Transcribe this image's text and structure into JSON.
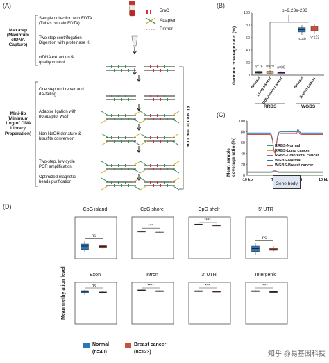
{
  "panel_a": {
    "label": "(A)",
    "legend": [
      {
        "label": "5mC",
        "icon": "5mc-marker-icon",
        "color": "#d4303b"
      },
      {
        "label": "Adapter",
        "icon": "adapter-icon",
        "color": "#2a8a4a"
      },
      {
        "label": "Primer",
        "icon": "primer-icon",
        "color": "#d4303b"
      }
    ],
    "maxcap_label": "Max-cap\n(Maximum\nctDNA\nCapture)",
    "minilib_label": "Mini-lib\n(Minimum\n1 ng of DNA\nLibrary\nPreparation)",
    "one_tube_label": "All step in one tube",
    "steps": [
      "Sample collection with EDTA\n(Tubes contain EDTA)",
      "Two step centrifugation\nDigestion with proteinase K",
      "ctDNA extraction &\nquality control",
      "One step end repair and\ndA-tailing",
      "Adaptor ligation with\nno adaptor wash",
      "Non-NaOH denature &\nbisulfite conversion",
      "Two-step, low cycle\nPCR amplification",
      "Optimized magnetic\nbeads purification"
    ]
  },
  "panel_b": {
    "label": "(B)",
    "ylabel": "Genome coverage ratio (%)",
    "pvalue": "p=9.23e-236",
    "group_rrbs": "RRBS",
    "group_wgbs": "WGBS",
    "chart_data": {
      "type": "box",
      "ylim": [
        0,
        100
      ],
      "yticks": [
        0,
        20,
        40,
        60,
        80,
        100
      ],
      "categories": [
        "Normal",
        "Lung cancer",
        "Colorectal cancer",
        "Normal",
        "Breast cancer"
      ],
      "groups": [
        "RRBS",
        "RRBS",
        "RRBS",
        "WGBS",
        "WGBS"
      ],
      "n_labels": [
        "n=75",
        "n=29",
        "n=30",
        "n=40",
        "n=123"
      ],
      "colors": [
        "#3a9a5a",
        "#e59a3a",
        "#8f5fb0",
        "#2a78b8",
        "#c8503c"
      ],
      "boxes": [
        {
          "q1": 3,
          "median": 4,
          "q3": 6,
          "min": 2,
          "max": 7
        },
        {
          "q1": 3,
          "median": 5,
          "q3": 6,
          "min": 2,
          "max": 8
        },
        {
          "q1": 2,
          "median": 4,
          "q3": 5,
          "min": 1,
          "max": 6
        },
        {
          "q1": 69,
          "median": 73,
          "q3": 76,
          "min": 64,
          "max": 80
        },
        {
          "q1": 71,
          "median": 74,
          "q3": 78,
          "min": 66,
          "max": 82
        }
      ]
    }
  },
  "panel_c": {
    "label": "(C)",
    "ylabel": "Mean sample\ncoverage ratio (%)",
    "gene_body": "Gene body",
    "chart_data": {
      "type": "line",
      "x_ticks": [
        "-10 kb",
        "TSS",
        "TES",
        "10 kb"
      ],
      "ylim": [
        0,
        100
      ],
      "yticks": [
        0,
        20,
        40,
        60,
        80,
        100
      ],
      "series": [
        {
          "name": "RRBS-Normal",
          "color": "#3a9a5a",
          "level": 5
        },
        {
          "name": "RRBS-Lung cancer",
          "color": "#e59a3a",
          "level": 5
        },
        {
          "name": "RRBS-Colorectal cancer",
          "color": "#8f5fb0",
          "level": 5
        },
        {
          "name": "WGBS-Normal",
          "color": "#2a78b8",
          "level": 78
        },
        {
          "name": "WGBS-Breast cancer",
          "color": "#c8503c",
          "level": 75
        }
      ]
    }
  },
  "panel_d": {
    "label": "(D)",
    "ylabel": "Mean methylation level",
    "legend": [
      {
        "label": "Normal",
        "n": "(n=40)",
        "color": "#2a78b8"
      },
      {
        "label": "Breast cancer",
        "n": "(n=123)",
        "color": "#c8503c"
      }
    ],
    "chart_data": {
      "type": "box",
      "ylim": [
        0,
        1
      ],
      "yticks": [
        0.0,
        0.2,
        0.4,
        0.6,
        0.8,
        1.0
      ],
      "panels": [
        {
          "title": "CpG island",
          "sig": "ns",
          "normal": {
            "q1": 0.22,
            "median": 0.3,
            "q3": 0.35,
            "min": 0.16,
            "max": 0.43
          },
          "cancer": {
            "q1": 0.27,
            "median": 0.29,
            "q3": 0.31,
            "min": 0.24,
            "max": 0.33
          }
        },
        {
          "title": "CpG shore",
          "sig": "***",
          "normal": {
            "q1": 0.64,
            "median": 0.65,
            "q3": 0.66,
            "min": 0.63,
            "max": 0.67
          },
          "cancer": {
            "q1": 0.63,
            "median": 0.64,
            "q3": 0.65,
            "min": 0.62,
            "max": 0.66
          }
        },
        {
          "title": "CpG shelf",
          "sig": "****",
          "normal": {
            "q1": 0.81,
            "median": 0.82,
            "q3": 0.83,
            "min": 0.8,
            "max": 0.84
          },
          "cancer": {
            "q1": 0.79,
            "median": 0.8,
            "q3": 0.81,
            "min": 0.78,
            "max": 0.82
          }
        },
        {
          "title": "5' UTR",
          "sig": "ns",
          "normal": {
            "q1": 0.17,
            "median": 0.24,
            "q3": 0.3,
            "min": 0.1,
            "max": 0.38
          },
          "cancer": {
            "q1": 0.2,
            "median": 0.23,
            "q3": 0.26,
            "min": 0.17,
            "max": 0.3
          }
        },
        {
          "title": "Exon",
          "sig": "ns",
          "normal": {
            "q1": 0.74,
            "median": 0.77,
            "q3": 0.8,
            "min": 0.7,
            "max": 0.82
          },
          "cancer": {
            "q1": 0.75,
            "median": 0.76,
            "q3": 0.77,
            "min": 0.73,
            "max": 0.79
          }
        },
        {
          "title": "Intron",
          "sig": "****",
          "normal": {
            "q1": 0.8,
            "median": 0.81,
            "q3": 0.82,
            "min": 0.79,
            "max": 0.83
          },
          "cancer": {
            "q1": 0.78,
            "median": 0.79,
            "q3": 0.8,
            "min": 0.77,
            "max": 0.81
          }
        },
        {
          "title": "3' UTR",
          "sig": "***",
          "normal": {
            "q1": 0.78,
            "median": 0.79,
            "q3": 0.8,
            "min": 0.77,
            "max": 0.81
          },
          "cancer": {
            "q1": 0.77,
            "median": 0.78,
            "q3": 0.79,
            "min": 0.76,
            "max": 0.8
          }
        },
        {
          "title": "Intergenic",
          "sig": "****",
          "normal": {
            "q1": 0.78,
            "median": 0.79,
            "q3": 0.8,
            "min": 0.77,
            "max": 0.81
          },
          "cancer": {
            "q1": 0.76,
            "median": 0.77,
            "q3": 0.78,
            "min": 0.75,
            "max": 0.79
          }
        }
      ]
    }
  },
  "watermark": "知乎 @易基因科技"
}
